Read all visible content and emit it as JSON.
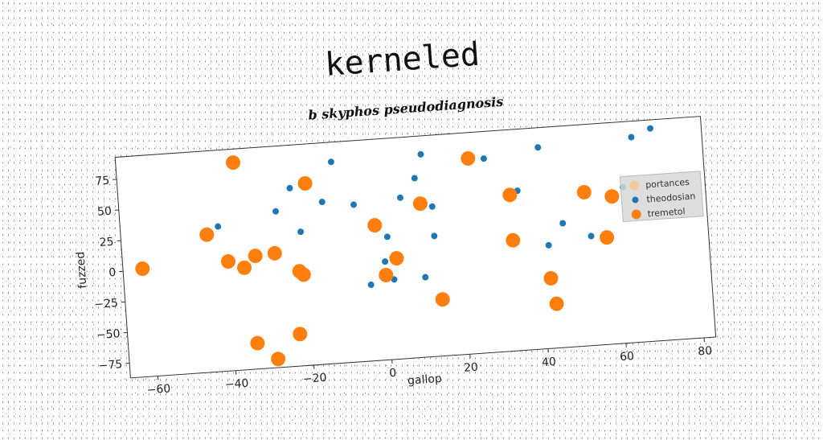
{
  "chart_data": {
    "type": "scatter",
    "title": "kerneled",
    "subtitle": "b skyphos pseudodiagnosis",
    "xlabel": "gallop",
    "ylabel": "fuzzed",
    "xlim": [
      -67,
      83
    ],
    "ylim": [
      -87,
      93
    ],
    "xticks": [
      -60,
      -40,
      -20,
      0,
      20,
      40,
      60,
      80
    ],
    "yticks": [
      -75,
      -50,
      -25,
      0,
      25,
      50,
      75
    ],
    "grid": false,
    "legend_position": "center-right",
    "series": [
      {
        "name": "portances",
        "color": "#f5c9a0",
        "marker_size": 10,
        "points": []
      },
      {
        "name": "theodosian",
        "color": "#1f77b4",
        "marker_size": 4,
        "points": [
          [
            -42,
            31
          ],
          [
            -27,
            40
          ],
          [
            -21,
            22
          ],
          [
            -23,
            58
          ],
          [
            -15,
            45
          ],
          [
            -12,
            77
          ],
          [
            -7,
            41
          ],
          [
            -4,
            -25
          ],
          [
            0,
            -7
          ],
          [
            1,
            13
          ],
          [
            2,
            -22
          ],
          [
            5,
            44
          ],
          [
            9,
            59
          ],
          [
            10,
            -22
          ],
          [
            10,
            38
          ],
          [
            11,
            78
          ],
          [
            13,
            11
          ],
          [
            13,
            35
          ],
          [
            27,
            71
          ],
          [
            35,
            43
          ],
          [
            41,
            77
          ],
          [
            42,
            -3
          ],
          [
            46,
            14
          ],
          [
            53,
            2
          ],
          [
            62,
            40
          ],
          [
            65,
            80
          ],
          [
            70,
            86
          ]
        ]
      },
      {
        "name": "tremetol",
        "color": "#ff7f0e",
        "marker_size": 9,
        "points": [
          [
            -62,
            1
          ],
          [
            -45,
            25
          ],
          [
            -40,
            2
          ],
          [
            -36,
            -4
          ],
          [
            -33,
            5
          ],
          [
            -37,
            82
          ],
          [
            -34,
            -66
          ],
          [
            -29,
            -80
          ],
          [
            -28,
            6
          ],
          [
            -23,
            -61
          ],
          [
            -22,
            -10
          ],
          [
            -21,
            -13
          ],
          [
            -19,
            61
          ],
          [
            -2,
            23
          ],
          [
            0,
            -18
          ],
          [
            3,
            -5
          ],
          [
            10,
            38
          ],
          [
            14,
            -41
          ],
          [
            23,
            72
          ],
          [
            33,
            40
          ],
          [
            33,
            3
          ],
          [
            42,
            -30
          ],
          [
            43,
            -51
          ],
          [
            52,
            38
          ],
          [
            57,
            0
          ],
          [
            59,
            33
          ]
        ]
      }
    ]
  }
}
